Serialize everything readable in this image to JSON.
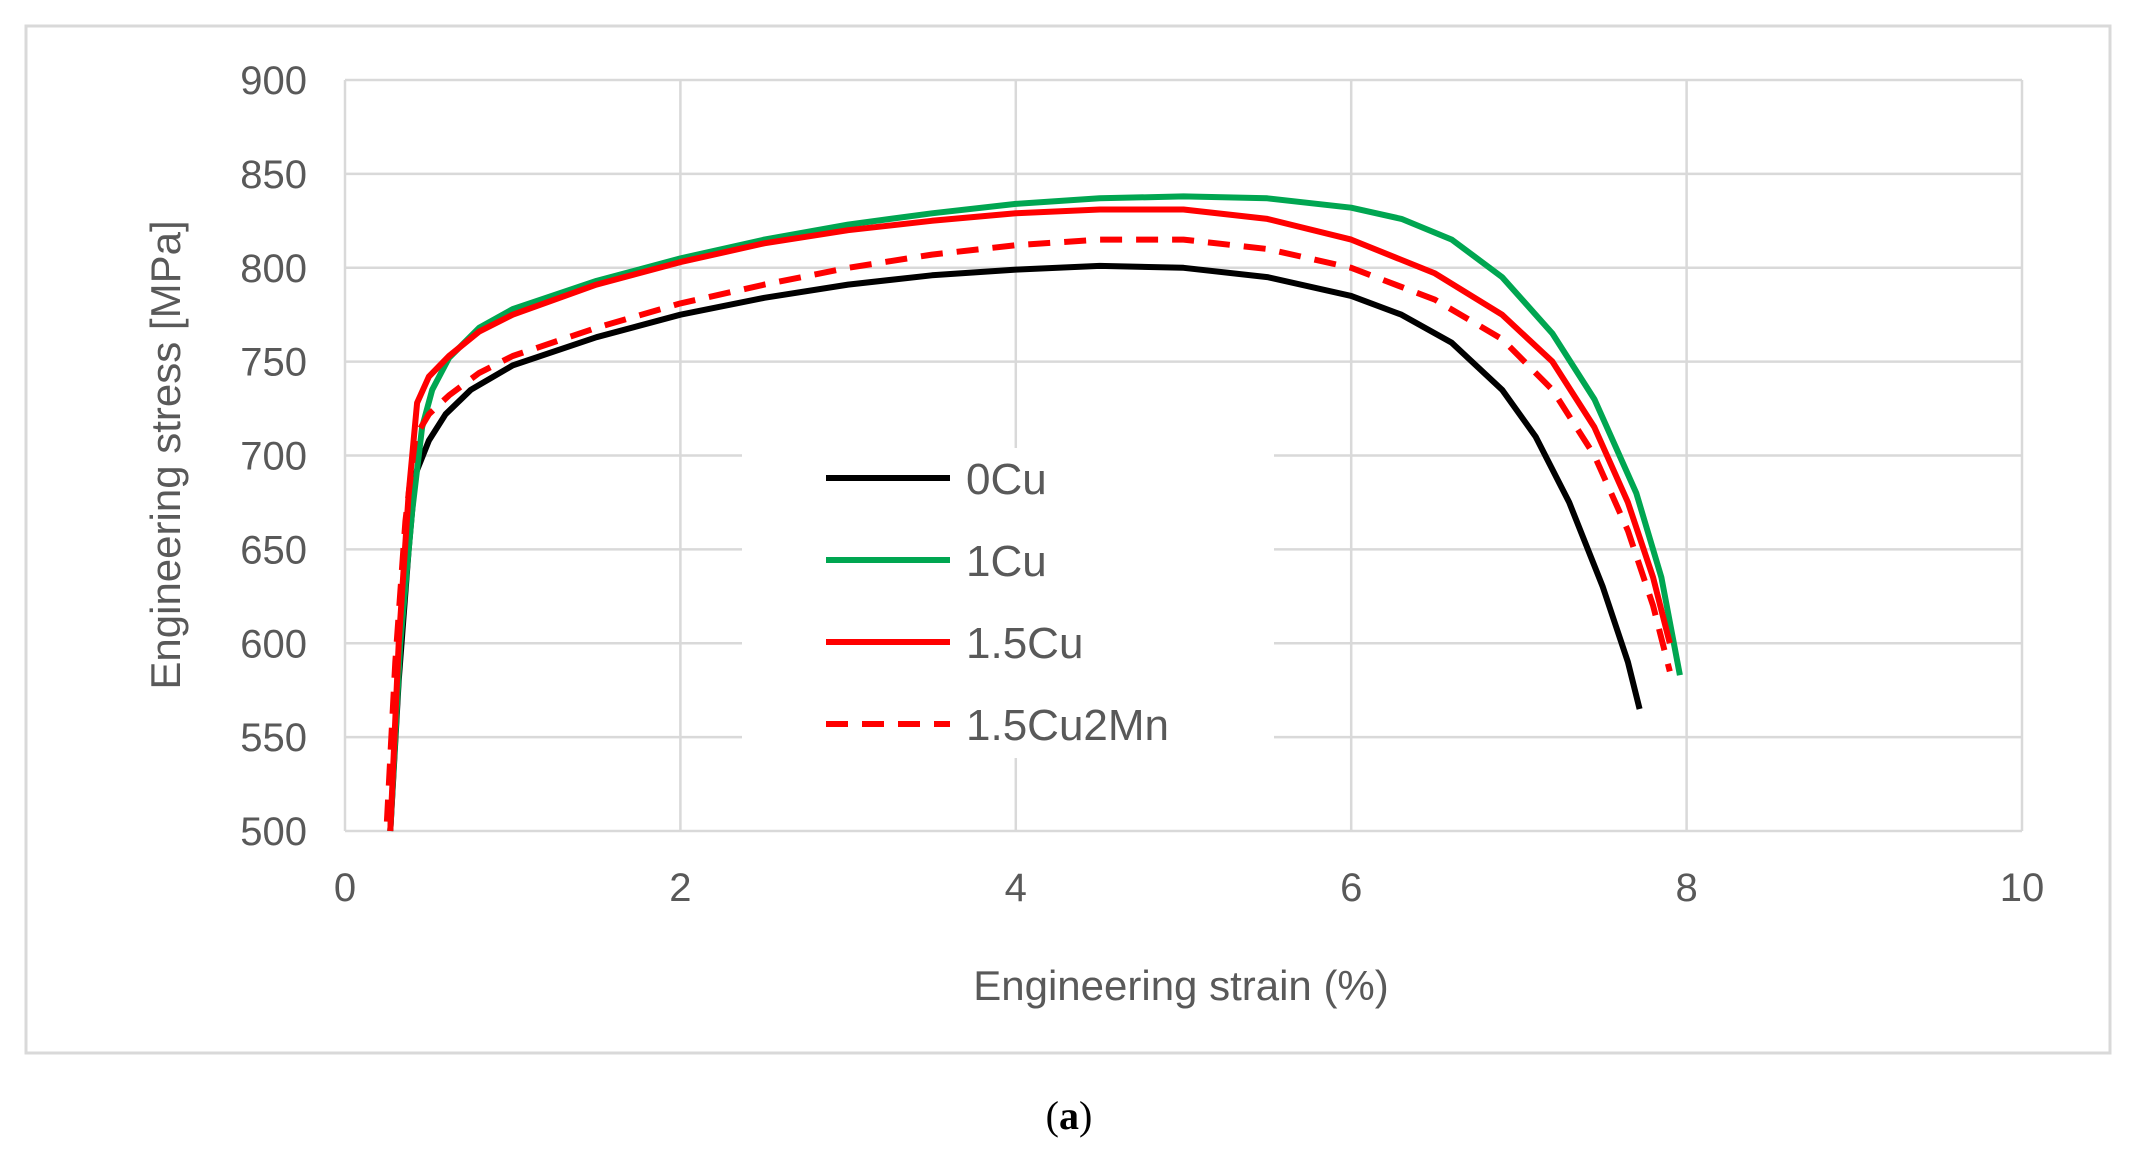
{
  "chart_data": {
    "type": "line",
    "title": "",
    "xlabel": "Engineering strain (%)",
    "ylabel": "Engineering stress [MPa]",
    "xlim": [
      0,
      10
    ],
    "ylim": [
      500,
      900
    ],
    "xticks": [
      "0",
      "2",
      "4",
      "6",
      "8",
      "10"
    ],
    "yticks": [
      "500",
      "550",
      "600",
      "650",
      "700",
      "750",
      "800",
      "850",
      "900"
    ],
    "grid": true,
    "legend_position": "center-left",
    "series": [
      {
        "name": "0Cu",
        "color": "#000000",
        "dash": "solid",
        "points": [
          [
            0.27,
            500
          ],
          [
            0.32,
            580
          ],
          [
            0.38,
            650
          ],
          [
            0.42,
            690
          ],
          [
            0.5,
            708
          ],
          [
            0.6,
            722
          ],
          [
            0.75,
            735
          ],
          [
            1.0,
            748
          ],
          [
            1.5,
            763
          ],
          [
            2.0,
            775
          ],
          [
            2.5,
            784
          ],
          [
            3.0,
            791
          ],
          [
            3.5,
            796
          ],
          [
            4.0,
            799
          ],
          [
            4.5,
            801
          ],
          [
            5.0,
            800
          ],
          [
            5.5,
            795
          ],
          [
            6.0,
            785
          ],
          [
            6.3,
            775
          ],
          [
            6.6,
            760
          ],
          [
            6.9,
            735
          ],
          [
            7.1,
            710
          ],
          [
            7.3,
            675
          ],
          [
            7.5,
            630
          ],
          [
            7.65,
            590
          ],
          [
            7.72,
            565
          ]
        ]
      },
      {
        "name": "1Cu",
        "color": "#00a651",
        "dash": "solid",
        "points": [
          [
            0.27,
            500
          ],
          [
            0.33,
            600
          ],
          [
            0.4,
            670
          ],
          [
            0.46,
            715
          ],
          [
            0.52,
            735
          ],
          [
            0.62,
            752
          ],
          [
            0.8,
            768
          ],
          [
            1.0,
            778
          ],
          [
            1.5,
            793
          ],
          [
            2.0,
            805
          ],
          [
            2.5,
            815
          ],
          [
            3.0,
            823
          ],
          [
            3.5,
            829
          ],
          [
            4.0,
            834
          ],
          [
            4.5,
            837
          ],
          [
            5.0,
            838
          ],
          [
            5.5,
            837
          ],
          [
            6.0,
            832
          ],
          [
            6.3,
            826
          ],
          [
            6.6,
            815
          ],
          [
            6.9,
            795
          ],
          [
            7.2,
            765
          ],
          [
            7.45,
            730
          ],
          [
            7.7,
            680
          ],
          [
            7.85,
            635
          ],
          [
            7.96,
            583
          ]
        ]
      },
      {
        "name": "1.5Cu",
        "color": "#ff0000",
        "dash": "solid",
        "points": [
          [
            0.27,
            500
          ],
          [
            0.32,
            600
          ],
          [
            0.38,
            680
          ],
          [
            0.43,
            728
          ],
          [
            0.5,
            742
          ],
          [
            0.62,
            753
          ],
          [
            0.8,
            766
          ],
          [
            1.0,
            775
          ],
          [
            1.5,
            791
          ],
          [
            2.0,
            803
          ],
          [
            2.5,
            813
          ],
          [
            3.0,
            820
          ],
          [
            3.5,
            825
          ],
          [
            4.0,
            829
          ],
          [
            4.5,
            831
          ],
          [
            5.0,
            831
          ],
          [
            5.5,
            826
          ],
          [
            6.0,
            815
          ],
          [
            6.5,
            797
          ],
          [
            6.9,
            775
          ],
          [
            7.2,
            750
          ],
          [
            7.45,
            715
          ],
          [
            7.65,
            675
          ],
          [
            7.8,
            635
          ],
          [
            7.9,
            600
          ]
        ]
      },
      {
        "name": "1.5Cu2Mn",
        "color": "#ff0000",
        "dash": "dashed",
        "points": [
          [
            0.25,
            505
          ],
          [
            0.3,
            590
          ],
          [
            0.36,
            665
          ],
          [
            0.42,
            710
          ],
          [
            0.5,
            722
          ],
          [
            0.62,
            732
          ],
          [
            0.8,
            744
          ],
          [
            1.0,
            753
          ],
          [
            1.5,
            768
          ],
          [
            2.0,
            781
          ],
          [
            2.5,
            791
          ],
          [
            3.0,
            800
          ],
          [
            3.5,
            807
          ],
          [
            4.0,
            812
          ],
          [
            4.5,
            815
          ],
          [
            5.0,
            815
          ],
          [
            5.5,
            810
          ],
          [
            6.0,
            800
          ],
          [
            6.5,
            783
          ],
          [
            6.9,
            762
          ],
          [
            7.2,
            735
          ],
          [
            7.45,
            700
          ],
          [
            7.65,
            660
          ],
          [
            7.8,
            620
          ],
          [
            7.9,
            585
          ]
        ]
      }
    ]
  },
  "caption": "a"
}
